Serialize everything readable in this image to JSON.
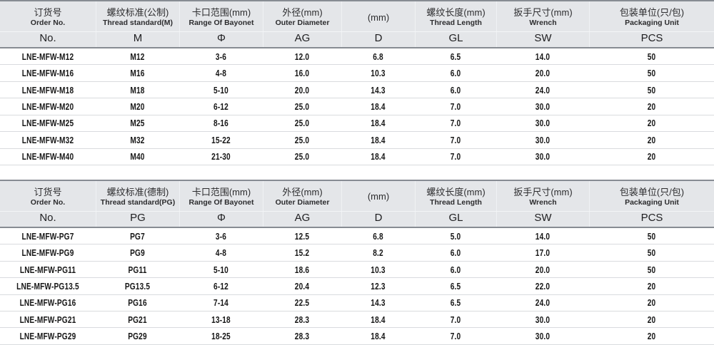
{
  "page": {
    "type": "product-specification-catalog",
    "background": "#ffffff"
  },
  "colors": {
    "header_bg": "#e4e6e9",
    "header_border": "#878c93",
    "row_divider": "#d9dbde",
    "text": "#1e1e20",
    "data_text": "#171717"
  },
  "tables": [
    {
      "id": "metric-thread-table",
      "columns": [
        {
          "zh": "订货号",
          "en": "Order No.",
          "code": "No."
        },
        {
          "zh": "螺纹标准(公制)",
          "en": "Thread standard(M)",
          "code": "M"
        },
        {
          "zh": "卡口范围(mm)",
          "en": "Range Of Bayonet",
          "code": "Φ"
        },
        {
          "zh": "外径(mm)",
          "en": "Outer Diameter",
          "code": "AG"
        },
        {
          "zh": "(mm)",
          "en": "",
          "code": "D"
        },
        {
          "zh": "螺纹长度(mm)",
          "en": "Thread Length",
          "code": "GL"
        },
        {
          "zh": "扳手尺寸(mm)",
          "en": "Wrench",
          "code": "SW"
        },
        {
          "zh": "包装单位(只/包)",
          "en": "Packaging Unit",
          "code": "PCS"
        }
      ],
      "rows": [
        [
          "LNE-MFW-M12",
          "M12",
          "3-6",
          "12.0",
          "6.8",
          "6.5",
          "14.0",
          "50"
        ],
        [
          "LNE-MFW-M16",
          "M16",
          "4-8",
          "16.0",
          "10.3",
          "6.0",
          "20.0",
          "50"
        ],
        [
          "LNE-MFW-M18",
          "M18",
          "5-10",
          "20.0",
          "14.3",
          "6.0",
          "24.0",
          "50"
        ],
        [
          "LNE-MFW-M20",
          "M20",
          "6-12",
          "25.0",
          "18.4",
          "7.0",
          "30.0",
          "20"
        ],
        [
          "LNE-MFW-M25",
          "M25",
          "8-16",
          "25.0",
          "18.4",
          "7.0",
          "30.0",
          "20"
        ],
        [
          "LNE-MFW-M32",
          "M32",
          "15-22",
          "25.0",
          "18.4",
          "7.0",
          "30.0",
          "20"
        ],
        [
          "LNE-MFW-M40",
          "M40",
          "21-30",
          "25.0",
          "18.4",
          "7.0",
          "30.0",
          "20"
        ]
      ]
    },
    {
      "id": "pg-thread-table",
      "columns": [
        {
          "zh": "订货号",
          "en": "Order No.",
          "code": "No."
        },
        {
          "zh": "螺纹标准(德制)",
          "en": "Thread standard(PG)",
          "code": "PG"
        },
        {
          "zh": "卡口范围(mm)",
          "en": "Range Of Bayonet",
          "code": "Φ"
        },
        {
          "zh": "外径(mm)",
          "en": "Outer Diameter",
          "code": "AG"
        },
        {
          "zh": "(mm)",
          "en": "",
          "code": "D"
        },
        {
          "zh": "螺纹长度(mm)",
          "en": "Thread Length",
          "code": "GL"
        },
        {
          "zh": "扳手尺寸(mm)",
          "en": "Wrench",
          "code": "SW"
        },
        {
          "zh": "包装单位(只/包)",
          "en": "Packaging Unit",
          "code": "PCS"
        }
      ],
      "rows": [
        [
          "LNE-MFW-PG7",
          "PG7",
          "3-6",
          "12.5",
          "6.8",
          "5.0",
          "14.0",
          "50"
        ],
        [
          "LNE-MFW-PG9",
          "PG9",
          "4-8",
          "15.2",
          "8.2",
          "6.0",
          "17.0",
          "50"
        ],
        [
          "LNE-MFW-PG11",
          "PG11",
          "5-10",
          "18.6",
          "10.3",
          "6.0",
          "20.0",
          "50"
        ],
        [
          "LNE-MFW-PG13.5",
          "PG13.5",
          "6-12",
          "20.4",
          "12.3",
          "6.5",
          "22.0",
          "20"
        ],
        [
          "LNE-MFW-PG16",
          "PG16",
          "7-14",
          "22.5",
          "14.3",
          "6.5",
          "24.0",
          "20"
        ],
        [
          "LNE-MFW-PG21",
          "PG21",
          "13-18",
          "28.3",
          "18.4",
          "7.0",
          "30.0",
          "20"
        ],
        [
          "LNE-MFW-PG29",
          "PG29",
          "18-25",
          "28.3",
          "18.4",
          "7.0",
          "30.0",
          "20"
        ]
      ]
    }
  ]
}
